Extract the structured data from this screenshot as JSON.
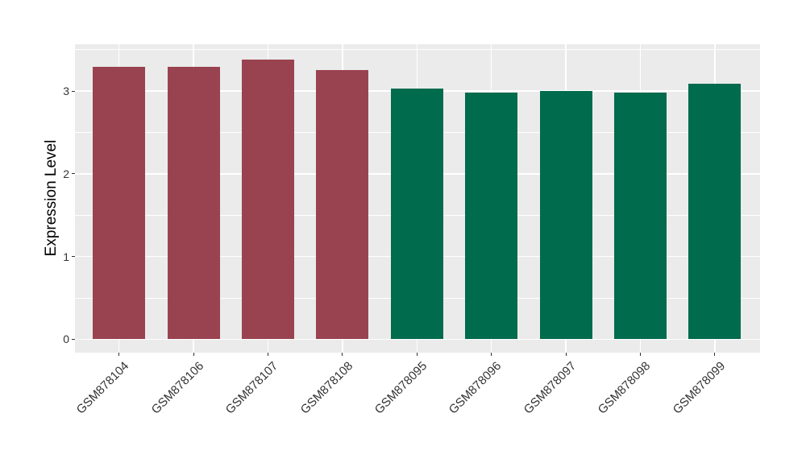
{
  "figure": {
    "background": "#ffffff"
  },
  "chart_data": {
    "type": "bar",
    "title": "",
    "xlabel": "",
    "ylabel": "Expression Level",
    "categories": [
      "GSM878104",
      "GSM878106",
      "GSM878107",
      "GSM878108",
      "GSM878095",
      "GSM878096",
      "GSM878097",
      "GSM878098",
      "GSM878099"
    ],
    "values": [
      3.29,
      3.29,
      3.38,
      3.25,
      3.03,
      2.98,
      3.0,
      2.98,
      3.09
    ],
    "groups": [
      "red",
      "red",
      "red",
      "red",
      "green",
      "green",
      "green",
      "green",
      "green"
    ],
    "group_colors": {
      "red": "#9A4350",
      "green": "#016B4D"
    },
    "yticks": [
      "0",
      "1",
      "2",
      "3"
    ],
    "ytick_values": [
      0,
      1,
      2,
      3
    ],
    "minor_tick_values": [
      0.5,
      1.5,
      2.5,
      3.5
    ],
    "ylim": [
      -0.17,
      3.56
    ],
    "x_label_rotation_deg": 45,
    "legend": "none",
    "grid": "on",
    "panel_background": "#EBEBEB",
    "gridline_color": "#FFFFFF",
    "tick_color": "#333333"
  }
}
